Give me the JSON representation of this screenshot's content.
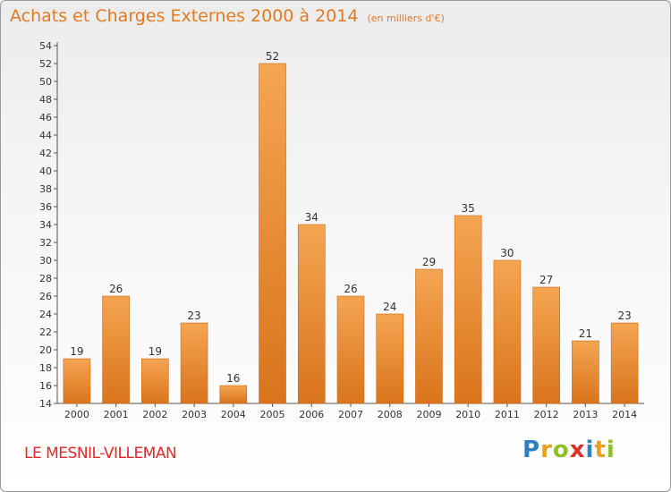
{
  "header": {
    "title": "Achats et Charges Externes 2000 à 2014",
    "unit_note": "(en milliers d'€)"
  },
  "footer": {
    "commune": "LE MESNIL-VILLEMAN",
    "logo_letters": [
      "P",
      "r",
      "o",
      "x",
      "i",
      "t",
      "i"
    ],
    "logo_colors": [
      "#2f7fc1",
      "#e8a020",
      "#8fbf2a",
      "#d9322b",
      "#2f7fc1",
      "#e8a020",
      "#8fbf2a"
    ]
  },
  "colors": {
    "bar_top": "#f5a552",
    "bar_bottom": "#d9741c",
    "bar_stroke": "#c96a18",
    "axis": "#555555",
    "title": "#e07a22",
    "commune": "#e0292b"
  },
  "chart_data": {
    "type": "bar",
    "categories": [
      "2000",
      "2001",
      "2002",
      "2003",
      "2004",
      "2005",
      "2006",
      "2007",
      "2008",
      "2009",
      "2010",
      "2011",
      "2012",
      "2013",
      "2014"
    ],
    "values": [
      19,
      26,
      19,
      23,
      16,
      52,
      34,
      26,
      24,
      29,
      35,
      30,
      27,
      21,
      23
    ],
    "ylim": [
      14,
      54
    ],
    "yticks": [
      14,
      16,
      18,
      20,
      22,
      24,
      26,
      28,
      30,
      32,
      34,
      36,
      38,
      40,
      42,
      44,
      46,
      48,
      50,
      52,
      54
    ],
    "grid": false,
    "data_labels": true
  }
}
